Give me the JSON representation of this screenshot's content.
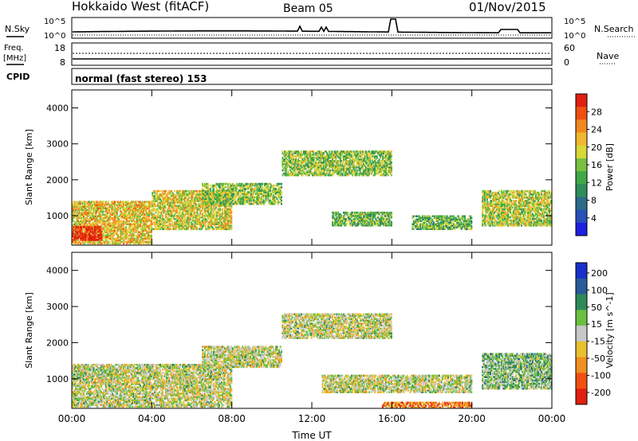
{
  "header": {
    "station": "Hokkaido West (fitACF)",
    "beam": "Beam 05",
    "date": "01/Nov/2015"
  },
  "strip": {
    "nsky_label": "N.Sky",
    "nsearch_label": "N.Search",
    "noise_ticks": [
      "10^5",
      "10^0"
    ],
    "freq_label_1": "Freq.",
    "freq_label_2": "[MHz]",
    "freq_ticks": [
      "18",
      "8"
    ],
    "nave_label": "Nave",
    "nave_ticks": [
      "60",
      "0"
    ],
    "cpid_label": "CPID",
    "cpid_text": "normal (fast stereo) 153"
  },
  "chart_data": [
    {
      "type": "heatmap",
      "name": "power",
      "xlabel": "Time UT",
      "ylabel": "Slant Range [km]",
      "xticks": [
        "00:00",
        "04:00",
        "08:00",
        "12:00",
        "16:00",
        "20:00",
        "00:00"
      ],
      "xlim_hours": [
        0,
        24
      ],
      "yticks": [
        1000,
        2000,
        3000,
        4000
      ],
      "ylim_km": [
        180,
        4500
      ],
      "colorbar": {
        "label": "Power [dB]",
        "ticks": [
          "4",
          "8",
          "12",
          "16",
          "20",
          "24",
          "28"
        ],
        "colors": [
          "#1f1fe0",
          "#2850b8",
          "#2e6a8a",
          "#2f8d5a",
          "#3fa84a",
          "#7ac040",
          "#d8d838",
          "#f0b830",
          "#f08a20",
          "#f05010",
          "#e02010"
        ]
      },
      "regions": [
        {
          "t0": 0.0,
          "t1": 4.0,
          "r0": 200,
          "r1": 1400,
          "level": 0.65
        },
        {
          "t0": 0.0,
          "t1": 1.5,
          "r0": 300,
          "r1": 700,
          "level": 0.95
        },
        {
          "t0": 4.0,
          "t1": 8.0,
          "r0": 600,
          "r1": 1700,
          "level": 0.6
        },
        {
          "t0": 6.5,
          "t1": 10.5,
          "r0": 1300,
          "r1": 1900,
          "level": 0.5
        },
        {
          "t0": 10.5,
          "t1": 16.0,
          "r0": 2100,
          "r1": 2800,
          "level": 0.5
        },
        {
          "t0": 13.0,
          "t1": 16.0,
          "r0": 700,
          "r1": 1100,
          "level": 0.45
        },
        {
          "t0": 17.0,
          "t1": 20.0,
          "r0": 600,
          "r1": 1000,
          "level": 0.45
        },
        {
          "t0": 20.5,
          "t1": 24.0,
          "r0": 700,
          "r1": 1700,
          "level": 0.55
        }
      ]
    },
    {
      "type": "heatmap",
      "name": "velocity",
      "xlabel": "Time UT",
      "ylabel": "Slant Range [km]",
      "xticks": [
        "00:00",
        "04:00",
        "08:00",
        "12:00",
        "16:00",
        "20:00",
        "00:00"
      ],
      "xlim_hours": [
        0,
        24
      ],
      "yticks": [
        1000,
        2000,
        3000,
        4000
      ],
      "ylim_km": [
        180,
        4500
      ],
      "colorbar": {
        "label": "Velocity [m s^-1]",
        "ticks": [
          "200",
          "100",
          "50",
          "15",
          "-15",
          "-50",
          "-100",
          "-200"
        ],
        "colors": [
          "#1830c8",
          "#2a5a9a",
          "#2f8a5a",
          "#6cc040",
          "#c8c8c8",
          "#e8c030",
          "#f09020",
          "#f05010",
          "#e02010"
        ]
      },
      "regions": [
        {
          "t0": 0.0,
          "t1": 8.0,
          "r0": 200,
          "r1": 1400,
          "level": 0.5
        },
        {
          "t0": 6.5,
          "t1": 10.5,
          "r0": 1300,
          "r1": 1900,
          "level": 0.5
        },
        {
          "t0": 10.5,
          "t1": 16.0,
          "r0": 2100,
          "r1": 2800,
          "level": 0.5
        },
        {
          "t0": 12.5,
          "t1": 20.0,
          "r0": 600,
          "r1": 1100,
          "level": 0.5
        },
        {
          "t0": 15.5,
          "t1": 20.0,
          "r0": 180,
          "r1": 350,
          "level": 0.75
        },
        {
          "t0": 20.5,
          "t1": 24.0,
          "r0": 700,
          "r1": 1700,
          "level": 0.4
        }
      ]
    }
  ]
}
